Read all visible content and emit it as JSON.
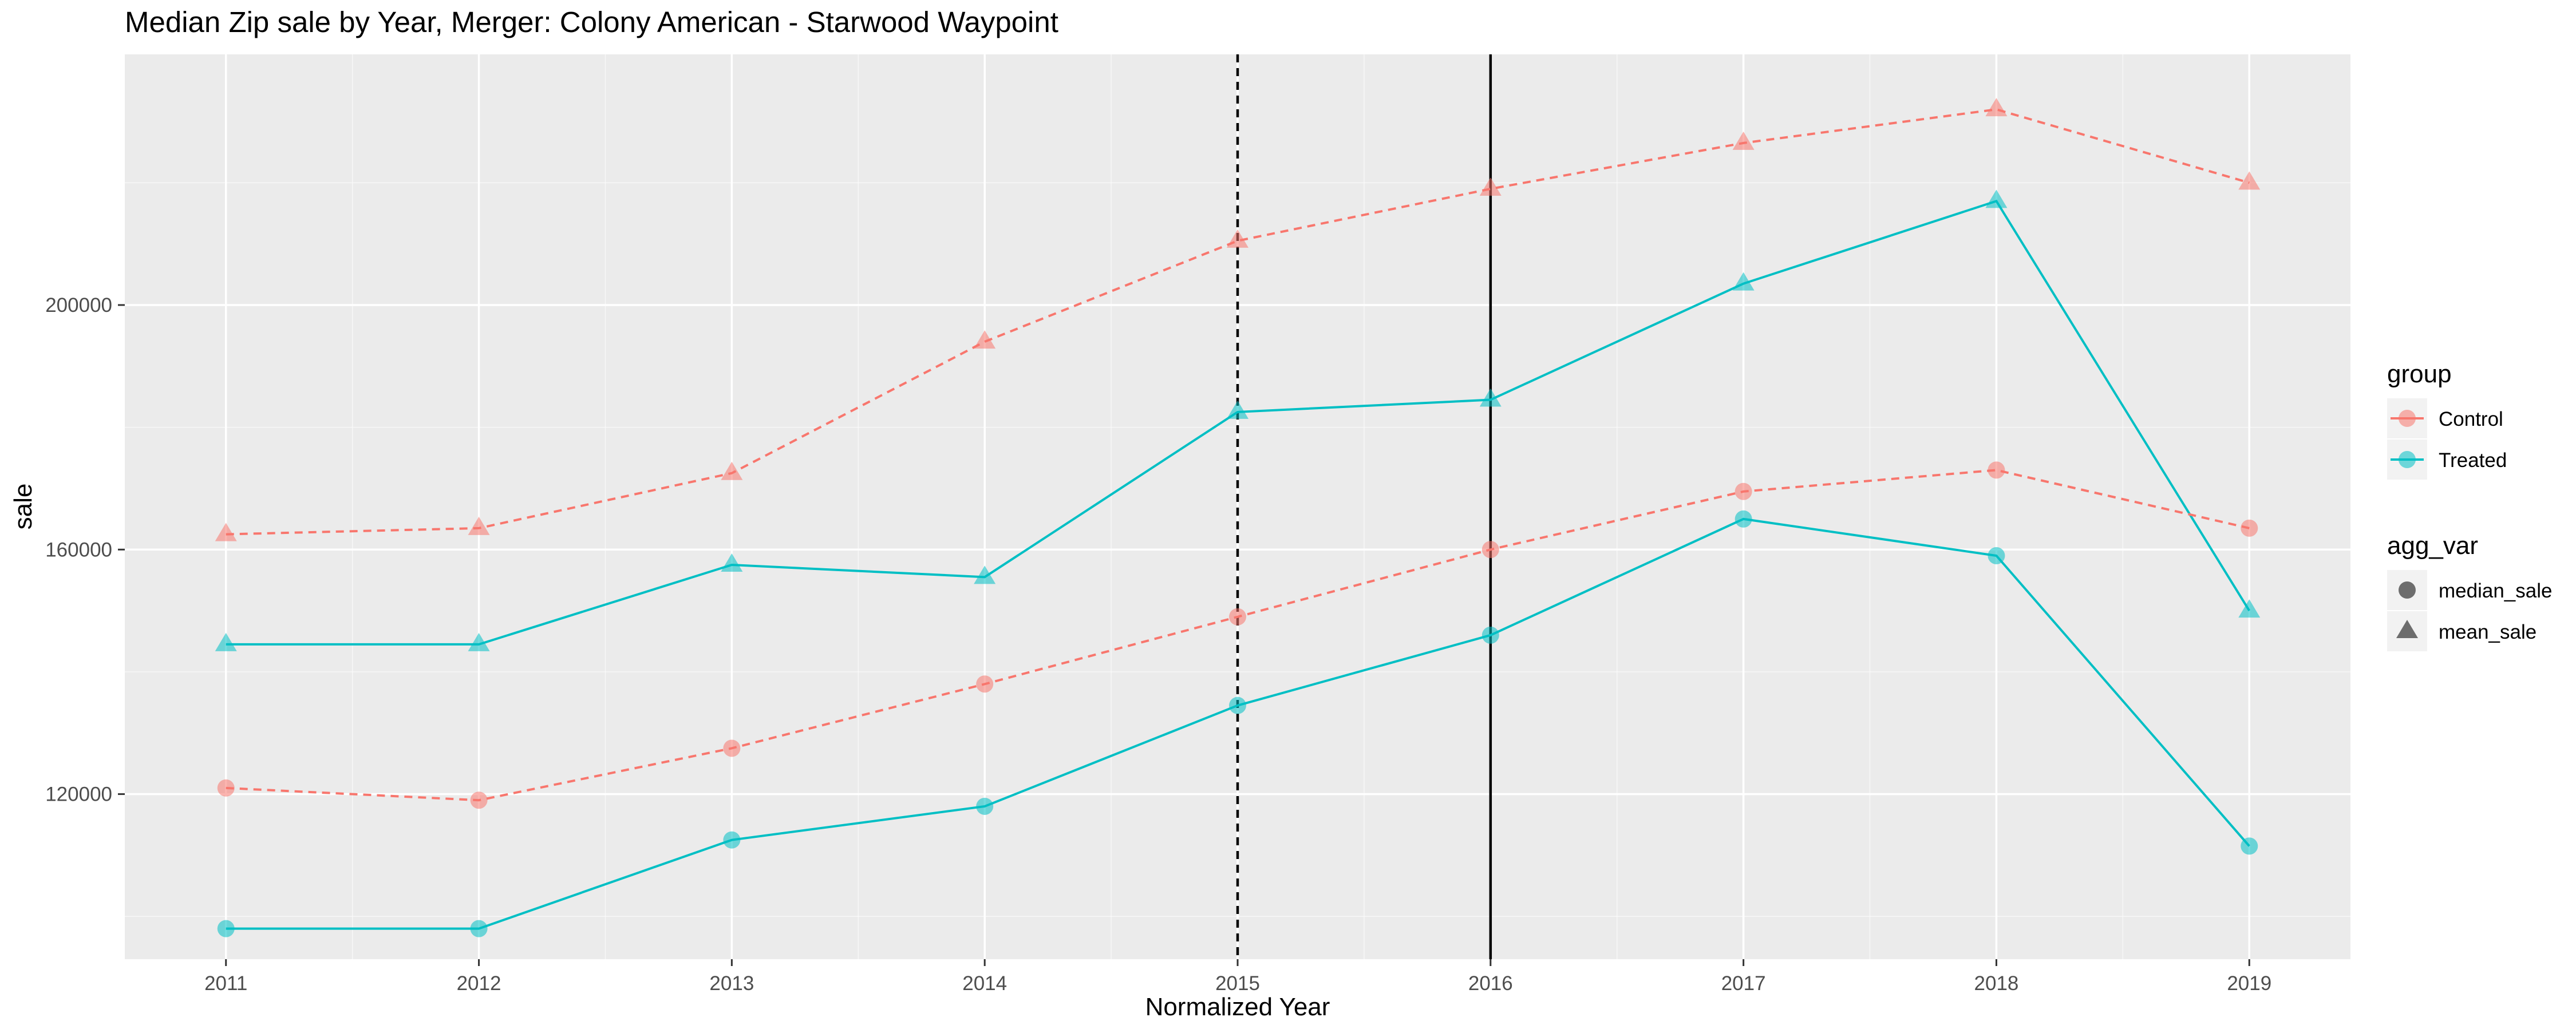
{
  "chart_data": {
    "type": "line",
    "title": "Median Zip sale by Year, Merger: Colony American - Starwood Waypoint",
    "xlabel": "Normalized Year",
    "ylabel": "sale",
    "x": [
      2011,
      2012,
      2013,
      2014,
      2015,
      2016,
      2017,
      2018,
      2019
    ],
    "x_ticks": [
      "2011",
      "2012",
      "2013",
      "2014",
      "2015",
      "2016",
      "2017",
      "2018",
      "2019"
    ],
    "y_ticks": [
      "120000",
      "160000",
      "200000"
    ],
    "y_tick_values": [
      120000,
      160000,
      200000
    ],
    "xlim": [
      2010.6,
      2019.4
    ],
    "ylim": [
      93000,
      241000
    ],
    "grid": true,
    "vlines": [
      {
        "x": 2015,
        "style": "dashed"
      },
      {
        "x": 2016,
        "style": "solid"
      }
    ],
    "series": [
      {
        "group": "Control",
        "agg_var": "mean_sale",
        "color": "#F8766D",
        "line": "dashed",
        "shape": "triangle",
        "values": [
          162500,
          163500,
          172500,
          194000,
          210500,
          219000,
          226500,
          232000,
          220000
        ]
      },
      {
        "group": "Treated",
        "agg_var": "mean_sale",
        "color": "#00BFC4",
        "line": "solid",
        "shape": "triangle",
        "values": [
          144500,
          144500,
          157500,
          155500,
          182500,
          184500,
          203500,
          217000,
          150000
        ]
      },
      {
        "group": "Control",
        "agg_var": "median_sale",
        "color": "#F8766D",
        "line": "dashed",
        "shape": "circle",
        "values": [
          121000,
          119000,
          127500,
          138000,
          149000,
          160000,
          169500,
          173000,
          163500
        ]
      },
      {
        "group": "Treated",
        "agg_var": "median_sale",
        "color": "#00BFC4",
        "line": "solid",
        "shape": "circle",
        "values": [
          98000,
          98000,
          112500,
          118000,
          134500,
          146000,
          165000,
          159000,
          111500
        ]
      }
    ],
    "legend": {
      "placement": "right",
      "group": {
        "title": "group",
        "items": [
          {
            "label": "Control",
            "color": "#F8766D"
          },
          {
            "label": "Treated",
            "color": "#00BFC4"
          }
        ]
      },
      "agg_var": {
        "title": "agg_var",
        "items": [
          {
            "label": "median_sale",
            "shape": "circle"
          },
          {
            "label": "mean_sale",
            "shape": "triangle"
          }
        ]
      }
    },
    "colors": {
      "panel": "#EBEBEB",
      "grid_major": "#FFFFFF",
      "control": "#F8766D",
      "treated": "#00BFC4"
    }
  }
}
